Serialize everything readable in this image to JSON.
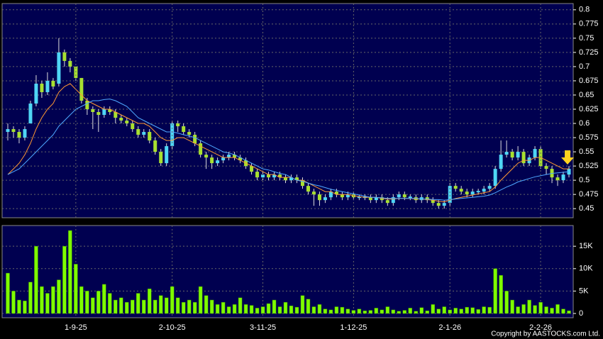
{
  "chart_data": [
    {
      "type": "candlestick",
      "ylim": [
        0.434,
        0.811
      ],
      "yticks": [
        0.45,
        0.475,
        0.5,
        0.525,
        0.55,
        0.575,
        0.6,
        0.625,
        0.65,
        0.675,
        0.7,
        0.725,
        0.75,
        0.775,
        0.8
      ],
      "grid": true,
      "up_color": "#4fd6f5",
      "down_color": "#a8e030",
      "open": [
        0.585,
        0.59,
        0.585,
        0.575,
        0.6,
        0.635,
        0.67,
        0.655,
        0.675,
        0.67,
        0.725,
        0.71,
        0.7,
        0.68,
        0.64,
        0.625,
        0.62,
        0.615,
        0.625,
        0.62,
        0.61,
        0.605,
        0.6,
        0.59,
        0.58,
        0.585,
        0.57,
        0.55,
        0.53,
        0.56,
        0.6,
        0.595,
        0.585,
        0.58,
        0.565,
        0.545,
        0.54,
        0.53,
        0.535,
        0.54,
        0.545,
        0.54,
        0.535,
        0.525,
        0.515,
        0.505,
        0.51,
        0.505,
        0.51,
        0.505,
        0.5,
        0.505,
        0.5,
        0.49,
        0.48,
        0.475,
        0.465,
        0.47,
        0.48,
        0.475,
        0.47,
        0.475,
        0.47,
        0.47,
        0.47,
        0.465,
        0.47,
        0.465,
        0.46,
        0.47,
        0.475,
        0.47,
        0.47,
        0.465,
        0.47,
        0.465,
        0.46,
        0.455,
        0.46,
        0.49,
        0.485,
        0.48,
        0.475,
        0.48,
        0.48,
        0.485,
        0.49,
        0.52,
        0.545,
        0.55,
        0.54,
        0.55,
        0.53,
        0.54,
        0.555,
        0.525,
        0.52,
        0.505,
        0.5,
        0.51
      ],
      "high": [
        0.6,
        0.595,
        0.59,
        0.595,
        0.64,
        0.685,
        0.675,
        0.69,
        0.68,
        0.75,
        0.73,
        0.715,
        0.7,
        0.68,
        0.645,
        0.63,
        0.625,
        0.63,
        0.63,
        0.625,
        0.615,
        0.61,
        0.605,
        0.595,
        0.59,
        0.59,
        0.575,
        0.555,
        0.565,
        0.605,
        0.605,
        0.6,
        0.59,
        0.585,
        0.57,
        0.55,
        0.545,
        0.54,
        0.545,
        0.55,
        0.55,
        0.545,
        0.54,
        0.53,
        0.52,
        0.515,
        0.515,
        0.515,
        0.515,
        0.51,
        0.51,
        0.51,
        0.505,
        0.495,
        0.485,
        0.48,
        0.475,
        0.485,
        0.485,
        0.48,
        0.48,
        0.48,
        0.475,
        0.475,
        0.475,
        0.475,
        0.475,
        0.47,
        0.475,
        0.48,
        0.48,
        0.475,
        0.475,
        0.475,
        0.475,
        0.47,
        0.465,
        0.465,
        0.495,
        0.495,
        0.49,
        0.485,
        0.485,
        0.485,
        0.49,
        0.495,
        0.525,
        0.57,
        0.57,
        0.555,
        0.56,
        0.555,
        0.545,
        0.56,
        0.56,
        0.53,
        0.525,
        0.51,
        0.515,
        0.525
      ],
      "low": [
        0.57,
        0.575,
        0.565,
        0.57,
        0.6,
        0.63,
        0.645,
        0.65,
        0.66,
        0.665,
        0.7,
        0.69,
        0.675,
        0.635,
        0.615,
        0.59,
        0.585,
        0.61,
        0.615,
        0.6,
        0.6,
        0.595,
        0.585,
        0.575,
        0.575,
        0.565,
        0.545,
        0.525,
        0.525,
        0.555,
        0.585,
        0.58,
        0.575,
        0.56,
        0.54,
        0.52,
        0.52,
        0.525,
        0.53,
        0.535,
        0.535,
        0.53,
        0.52,
        0.51,
        0.5,
        0.5,
        0.5,
        0.5,
        0.5,
        0.495,
        0.495,
        0.495,
        0.485,
        0.475,
        0.455,
        0.455,
        0.46,
        0.465,
        0.47,
        0.465,
        0.465,
        0.465,
        0.465,
        0.465,
        0.46,
        0.46,
        0.46,
        0.455,
        0.455,
        0.465,
        0.465,
        0.465,
        0.46,
        0.46,
        0.46,
        0.455,
        0.45,
        0.45,
        0.455,
        0.48,
        0.475,
        0.47,
        0.47,
        0.475,
        0.475,
        0.48,
        0.485,
        0.515,
        0.54,
        0.535,
        0.535,
        0.525,
        0.525,
        0.535,
        0.52,
        0.51,
        0.495,
        0.49,
        0.495,
        0.505
      ],
      "close": [
        0.59,
        0.585,
        0.575,
        0.59,
        0.635,
        0.67,
        0.655,
        0.675,
        0.665,
        0.725,
        0.71,
        0.7,
        0.68,
        0.64,
        0.625,
        0.62,
        0.615,
        0.625,
        0.62,
        0.61,
        0.605,
        0.6,
        0.59,
        0.58,
        0.585,
        0.57,
        0.55,
        0.53,
        0.56,
        0.6,
        0.595,
        0.585,
        0.58,
        0.565,
        0.545,
        0.54,
        0.53,
        0.535,
        0.54,
        0.545,
        0.54,
        0.535,
        0.525,
        0.515,
        0.505,
        0.51,
        0.505,
        0.51,
        0.505,
        0.5,
        0.505,
        0.5,
        0.49,
        0.48,
        0.475,
        0.465,
        0.47,
        0.48,
        0.475,
        0.47,
        0.475,
        0.47,
        0.47,
        0.47,
        0.465,
        0.47,
        0.465,
        0.46,
        0.47,
        0.475,
        0.47,
        0.47,
        0.465,
        0.47,
        0.465,
        0.46,
        0.455,
        0.46,
        0.49,
        0.485,
        0.48,
        0.475,
        0.48,
        0.48,
        0.485,
        0.49,
        0.52,
        0.545,
        0.55,
        0.54,
        0.55,
        0.53,
        0.54,
        0.555,
        0.525,
        0.52,
        0.505,
        0.5,
        0.51,
        0.52
      ],
      "series": [
        {
          "color": "#ff9933",
          "values": [
            0.51,
            0.52,
            0.53,
            0.545,
            0.565,
            0.59,
            0.61,
            0.625,
            0.635,
            0.655,
            0.665,
            0.67,
            0.66,
            0.65,
            0.64,
            0.635,
            0.63,
            0.625,
            0.625,
            0.62,
            0.615,
            0.61,
            0.605,
            0.6,
            0.6,
            0.595,
            0.585,
            0.575,
            0.57,
            0.57,
            0.575,
            0.575,
            0.57,
            0.565,
            0.56,
            0.555,
            0.55,
            0.545,
            0.54,
            0.54,
            0.54,
            0.535,
            0.53,
            0.525,
            0.52,
            0.515,
            0.51,
            0.51,
            0.505,
            0.505,
            0.505,
            0.5,
            0.5,
            0.495,
            0.49,
            0.485,
            0.48,
            0.48,
            0.475,
            0.475,
            0.475,
            0.473,
            0.471,
            0.47,
            0.47,
            0.47,
            0.468,
            0.467,
            0.467,
            0.468,
            0.468,
            0.468,
            0.467,
            0.467,
            0.466,
            0.465,
            0.463,
            0.462,
            0.465,
            0.468,
            0.47,
            0.472,
            0.474,
            0.476,
            0.478,
            0.48,
            0.488,
            0.5,
            0.51,
            0.52,
            0.53,
            0.535,
            0.535,
            0.54,
            0.54,
            0.535,
            0.53,
            0.525,
            0.52,
            0.52
          ]
        },
        {
          "color": "#4fa8ff",
          "values": [
            0.51,
            0.515,
            0.52,
            0.53,
            0.54,
            0.55,
            0.56,
            0.57,
            0.58,
            0.595,
            0.605,
            0.615,
            0.625,
            0.63,
            0.635,
            0.64,
            0.64,
            0.642,
            0.643,
            0.64,
            0.635,
            0.63,
            0.62,
            0.61,
            0.605,
            0.6,
            0.595,
            0.59,
            0.585,
            0.585,
            0.583,
            0.58,
            0.578,
            0.575,
            0.57,
            0.565,
            0.56,
            0.555,
            0.55,
            0.548,
            0.545,
            0.54,
            0.535,
            0.53,
            0.525,
            0.52,
            0.518,
            0.515,
            0.512,
            0.51,
            0.505,
            0.5,
            0.498,
            0.495,
            0.492,
            0.49,
            0.487,
            0.484,
            0.482,
            0.48,
            0.478,
            0.476,
            0.474,
            0.472,
            0.47,
            0.47,
            0.469,
            0.468,
            0.468,
            0.468,
            0.468,
            0.468,
            0.468,
            0.467,
            0.467,
            0.466,
            0.466,
            0.465,
            0.466,
            0.467,
            0.468,
            0.469,
            0.47,
            0.471,
            0.472,
            0.474,
            0.478,
            0.483,
            0.488,
            0.492,
            0.497,
            0.5,
            0.503,
            0.506,
            0.508,
            0.51,
            0.512,
            0.513,
            0.514,
            0.515
          ]
        }
      ]
    },
    {
      "type": "bar",
      "color": "#7fff00",
      "ylim": [
        0,
        19300
      ],
      "yticks": [
        0,
        {
          "value": 5000,
          "label": "5K"
        },
        {
          "value": 10000,
          "label": "10K"
        },
        {
          "value": 15000,
          "label": "15K"
        }
      ],
      "grid": true,
      "categories": [
        null,
        null,
        null,
        null,
        null,
        null,
        null,
        null,
        null,
        null,
        null,
        null,
        "1-9-25",
        null,
        null,
        null,
        null,
        null,
        null,
        null,
        null,
        null,
        null,
        null,
        null,
        null,
        null,
        null,
        null,
        "2-10-25",
        null,
        null,
        null,
        null,
        null,
        null,
        null,
        null,
        null,
        null,
        null,
        null,
        null,
        null,
        null,
        "3-11-25",
        null,
        null,
        null,
        null,
        null,
        null,
        null,
        null,
        null,
        null,
        null,
        null,
        null,
        null,
        null,
        "1-12-25",
        null,
        null,
        null,
        null,
        null,
        null,
        null,
        null,
        null,
        null,
        null,
        null,
        null,
        null,
        null,
        null,
        "2-1-26",
        null,
        null,
        null,
        null,
        null,
        null,
        null,
        null,
        null,
        null,
        null,
        null,
        null,
        null,
        null,
        "2-2-26",
        null,
        null,
        null,
        null,
        null
      ],
      "values": [
        9000,
        5000,
        3000,
        2800,
        7000,
        15000,
        6000,
        4500,
        6000,
        7500,
        15000,
        18500,
        11000,
        6000,
        5000,
        3500,
        5000,
        6500,
        4500,
        3000,
        3500,
        2500,
        3000,
        4500,
        3000,
        5500,
        3000,
        4000,
        3500,
        6000,
        3500,
        2500,
        3000,
        2500,
        6000,
        4000,
        3000,
        2000,
        2500,
        1500,
        2000,
        3500,
        2000,
        1800,
        1200,
        1500,
        2200,
        3000,
        1500,
        2500,
        1700,
        1400,
        4000,
        3200,
        1500,
        2000,
        1000,
        800,
        1500,
        1400,
        1000,
        700,
        1000,
        600,
        700,
        1200,
        800,
        1500,
        800,
        500,
        700,
        1200,
        500,
        1300,
        600,
        2000,
        1000,
        1500,
        800,
        1200,
        1000,
        1400,
        1300,
        900,
        1500,
        1400,
        10000,
        8500,
        5000,
        3000,
        1500,
        2000,
        3000,
        1800,
        2500,
        1500,
        1200,
        2000,
        1000,
        600
      ]
    }
  ],
  "copyright": "Copyright by AASTOCKS.com Ltd."
}
